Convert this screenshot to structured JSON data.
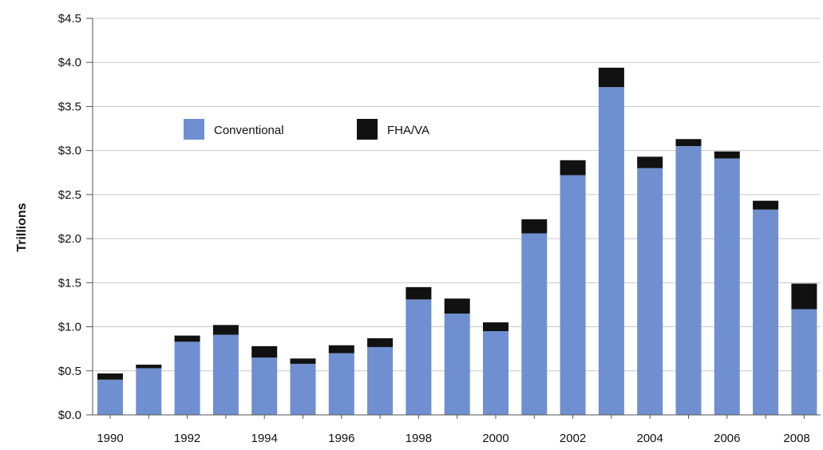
{
  "chart_data": {
    "type": "bar",
    "stacked": true,
    "title": "",
    "xlabel": "",
    "ylabel": "Trillions",
    "ylim": [
      0,
      4.5
    ],
    "y_ticks": [
      "$0.0",
      "$0.5",
      "$1.0",
      "$1.5",
      "$2.0",
      "$2.5",
      "$3.0",
      "$3.5",
      "$4.0",
      "$4.5"
    ],
    "y_tick_values": [
      0,
      0.5,
      1.0,
      1.5,
      2.0,
      2.5,
      3.0,
      3.5,
      4.0,
      4.5
    ],
    "categories": [
      "1990",
      "1991",
      "1992",
      "1993",
      "1994",
      "1995",
      "1996",
      "1997",
      "1998",
      "1999",
      "2000",
      "2001",
      "2002",
      "2003",
      "2004",
      "2005",
      "2006",
      "2007",
      "2008"
    ],
    "x_tick_labels": [
      "1990",
      "",
      "1992",
      "",
      "1994",
      "",
      "1996",
      "",
      "1998",
      "",
      "2000",
      "",
      "2002",
      "",
      "2004",
      "",
      "2006",
      "",
      "2008"
    ],
    "series": [
      {
        "name": "Conventional",
        "color": "#6f8fd1",
        "values": [
          0.4,
          0.53,
          0.83,
          0.91,
          0.65,
          0.58,
          0.7,
          0.77,
          1.31,
          1.15,
          0.95,
          2.06,
          2.72,
          3.72,
          2.8,
          3.05,
          2.91,
          2.33,
          1.2
        ]
      },
      {
        "name": "FHA/VA",
        "color": "#111111",
        "values": [
          0.07,
          0.04,
          0.07,
          0.11,
          0.13,
          0.06,
          0.09,
          0.1,
          0.14,
          0.17,
          0.1,
          0.16,
          0.17,
          0.22,
          0.13,
          0.08,
          0.08,
          0.1,
          0.29
        ]
      }
    ],
    "grid": true,
    "legend_position": "top-left, inside plot"
  }
}
